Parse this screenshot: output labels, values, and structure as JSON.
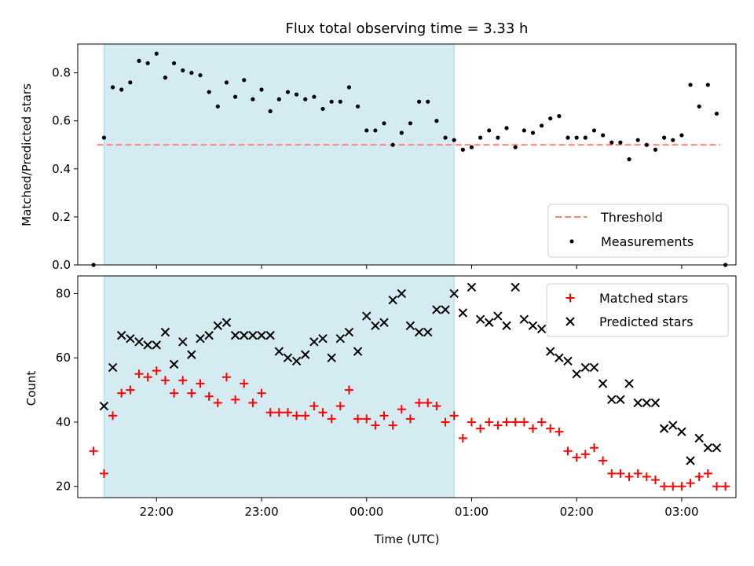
{
  "chart_data": {
    "title": "Flux total observing time = 3.33 h",
    "xlabel": "Time (UTC)",
    "x_tick_labels": [
      "22:00",
      "23:00",
      "00:00",
      "01:00",
      "02:00",
      "03:00"
    ],
    "observing_window": {
      "start": "21:30",
      "end": "00:50",
      "color": "#d4ebf2"
    },
    "panels": [
      {
        "id": "ratio",
        "type": "scatter",
        "ylabel": "Matched/Predicted stars",
        "ylim": [
          0.0,
          0.92
        ],
        "y_ticks": [
          0.0,
          0.2,
          0.4,
          0.6,
          0.8
        ],
        "y_tick_labels": [
          "0.0",
          "0.2",
          "0.4",
          "0.6",
          "0.8"
        ],
        "legend_position": "bottom-right",
        "threshold": {
          "name": "Threshold",
          "value": 0.5,
          "x_start": "21:26",
          "x_end": "03:22",
          "color": "#ff7f7f"
        },
        "series": [
          {
            "name": "Measurements",
            "marker": "dot",
            "color": "#000000",
            "points": [
              [
                "21:24",
                0.0
              ],
              [
                "21:30",
                0.53
              ],
              [
                "21:35",
                0.74
              ],
              [
                "21:40",
                0.73
              ],
              [
                "21:45",
                0.76
              ],
              [
                "21:50",
                0.85
              ],
              [
                "21:55",
                0.84
              ],
              [
                "22:00",
                0.88
              ],
              [
                "22:05",
                0.78
              ],
              [
                "22:10",
                0.84
              ],
              [
                "22:15",
                0.81
              ],
              [
                "22:20",
                0.8
              ],
              [
                "22:25",
                0.79
              ],
              [
                "22:30",
                0.72
              ],
              [
                "22:35",
                0.66
              ],
              [
                "22:40",
                0.76
              ],
              [
                "22:45",
                0.7
              ],
              [
                "22:50",
                0.77
              ],
              [
                "22:55",
                0.69
              ],
              [
                "23:00",
                0.73
              ],
              [
                "23:05",
                0.64
              ],
              [
                "23:10",
                0.69
              ],
              [
                "23:15",
                0.72
              ],
              [
                "23:20",
                0.71
              ],
              [
                "23:25",
                0.69
              ],
              [
                "23:30",
                0.7
              ],
              [
                "23:35",
                0.65
              ],
              [
                "23:40",
                0.68
              ],
              [
                "23:45",
                0.68
              ],
              [
                "23:50",
                0.74
              ],
              [
                "23:55",
                0.66
              ],
              [
                "00:00",
                0.56
              ],
              [
                "00:05",
                0.56
              ],
              [
                "00:10",
                0.59
              ],
              [
                "00:15",
                0.5
              ],
              [
                "00:20",
                0.55
              ],
              [
                "00:25",
                0.59
              ],
              [
                "00:30",
                0.68
              ],
              [
                "00:35",
                0.68
              ],
              [
                "00:40",
                0.6
              ],
              [
                "00:45",
                0.53
              ],
              [
                "00:50",
                0.52
              ],
              [
                "00:55",
                0.48
              ],
              [
                "01:00",
                0.49
              ],
              [
                "01:05",
                0.53
              ],
              [
                "01:10",
                0.56
              ],
              [
                "01:15",
                0.53
              ],
              [
                "01:20",
                0.57
              ],
              [
                "01:25",
                0.49
              ],
              [
                "01:30",
                0.56
              ],
              [
                "01:35",
                0.55
              ],
              [
                "01:40",
                0.58
              ],
              [
                "01:45",
                0.61
              ],
              [
                "01:50",
                0.62
              ],
              [
                "01:55",
                0.53
              ],
              [
                "02:00",
                0.53
              ],
              [
                "02:05",
                0.53
              ],
              [
                "02:10",
                0.56
              ],
              [
                "02:15",
                0.54
              ],
              [
                "02:20",
                0.51
              ],
              [
                "02:25",
                0.51
              ],
              [
                "02:30",
                0.44
              ],
              [
                "02:35",
                0.52
              ],
              [
                "02:40",
                0.5
              ],
              [
                "02:45",
                0.48
              ],
              [
                "02:50",
                0.53
              ],
              [
                "02:55",
                0.52
              ],
              [
                "03:00",
                0.54
              ],
              [
                "03:05",
                0.75
              ],
              [
                "03:10",
                0.66
              ],
              [
                "03:15",
                0.75
              ],
              [
                "03:20",
                0.63
              ],
              [
                "03:25",
                0.0
              ]
            ]
          }
        ]
      },
      {
        "id": "counts",
        "type": "scatter",
        "ylabel": "Count",
        "ylim": [
          16.5,
          85.5
        ],
        "y_ticks": [
          20,
          40,
          60,
          80
        ],
        "y_tick_labels": [
          "20",
          "40",
          "60",
          "80"
        ],
        "legend_position": "top-right",
        "series": [
          {
            "name": "Matched stars",
            "marker": "plus",
            "color": "#ff0000",
            "points": [
              [
                "21:24",
                31
              ],
              [
                "21:30",
                24
              ],
              [
                "21:35",
                42
              ],
              [
                "21:40",
                49
              ],
              [
                "21:45",
                50
              ],
              [
                "21:50",
                55
              ],
              [
                "21:55",
                54
              ],
              [
                "22:00",
                56
              ],
              [
                "22:05",
                53
              ],
              [
                "22:10",
                49
              ],
              [
                "22:15",
                53
              ],
              [
                "22:20",
                49
              ],
              [
                "22:25",
                52
              ],
              [
                "22:30",
                48
              ],
              [
                "22:35",
                46
              ],
              [
                "22:40",
                54
              ],
              [
                "22:45",
                47
              ],
              [
                "22:50",
                52
              ],
              [
                "22:55",
                46
              ],
              [
                "23:00",
                49
              ],
              [
                "23:05",
                43
              ],
              [
                "23:10",
                43
              ],
              [
                "23:15",
                43
              ],
              [
                "23:20",
                42
              ],
              [
                "23:25",
                42
              ],
              [
                "23:30",
                45
              ],
              [
                "23:35",
                43
              ],
              [
                "23:40",
                41
              ],
              [
                "23:45",
                45
              ],
              [
                "23:50",
                50
              ],
              [
                "23:55",
                41
              ],
              [
                "00:00",
                41
              ],
              [
                "00:05",
                39
              ],
              [
                "00:10",
                42
              ],
              [
                "00:15",
                39
              ],
              [
                "00:20",
                44
              ],
              [
                "00:25",
                41
              ],
              [
                "00:30",
                46
              ],
              [
                "00:35",
                46
              ],
              [
                "00:40",
                45
              ],
              [
                "00:45",
                40
              ],
              [
                "00:50",
                42
              ],
              [
                "00:55",
                35
              ],
              [
                "01:00",
                40
              ],
              [
                "01:05",
                38
              ],
              [
                "01:10",
                40
              ],
              [
                "01:15",
                39
              ],
              [
                "01:20",
                40
              ],
              [
                "01:25",
                40
              ],
              [
                "01:30",
                40
              ],
              [
                "01:35",
                38
              ],
              [
                "01:40",
                40
              ],
              [
                "01:45",
                38
              ],
              [
                "01:50",
                37
              ],
              [
                "01:55",
                31
              ],
              [
                "02:00",
                29
              ],
              [
                "02:05",
                30
              ],
              [
                "02:10",
                32
              ],
              [
                "02:15",
                28
              ],
              [
                "02:20",
                24
              ],
              [
                "02:25",
                24
              ],
              [
                "02:30",
                23
              ],
              [
                "02:35",
                24
              ],
              [
                "02:40",
                23
              ],
              [
                "02:45",
                22
              ],
              [
                "02:50",
                20
              ],
              [
                "02:55",
                20
              ],
              [
                "03:00",
                20
              ],
              [
                "03:05",
                21
              ],
              [
                "03:10",
                23
              ],
              [
                "03:15",
                24
              ],
              [
                "03:20",
                20
              ],
              [
                "03:25",
                20
              ]
            ]
          },
          {
            "name": "Predicted stars",
            "marker": "x",
            "color": "#000000",
            "points": [
              [
                "21:30",
                45
              ],
              [
                "21:35",
                57
              ],
              [
                "21:40",
                67
              ],
              [
                "21:45",
                66
              ],
              [
                "21:50",
                65
              ],
              [
                "21:55",
                64
              ],
              [
                "22:00",
                64
              ],
              [
                "22:05",
                68
              ],
              [
                "22:10",
                58
              ],
              [
                "22:15",
                65
              ],
              [
                "22:20",
                61
              ],
              [
                "22:25",
                66
              ],
              [
                "22:30",
                67
              ],
              [
                "22:35",
                70
              ],
              [
                "22:40",
                71
              ],
              [
                "22:45",
                67
              ],
              [
                "22:50",
                67
              ],
              [
                "22:55",
                67
              ],
              [
                "23:00",
                67
              ],
              [
                "23:05",
                67
              ],
              [
                "23:10",
                62
              ],
              [
                "23:15",
                60
              ],
              [
                "23:20",
                59
              ],
              [
                "23:25",
                61
              ],
              [
                "23:30",
                65
              ],
              [
                "23:35",
                66
              ],
              [
                "23:40",
                60
              ],
              [
                "23:45",
                66
              ],
              [
                "23:50",
                68
              ],
              [
                "23:55",
                62
              ],
              [
                "00:00",
                73
              ],
              [
                "00:05",
                70
              ],
              [
                "00:10",
                71
              ],
              [
                "00:15",
                78
              ],
              [
                "00:20",
                80
              ],
              [
                "00:25",
                70
              ],
              [
                "00:30",
                68
              ],
              [
                "00:35",
                68
              ],
              [
                "00:40",
                75
              ],
              [
                "00:45",
                75
              ],
              [
                "00:50",
                80
              ],
              [
                "00:55",
                74
              ],
              [
                "01:00",
                82
              ],
              [
                "01:05",
                72
              ],
              [
                "01:10",
                71
              ],
              [
                "01:15",
                73
              ],
              [
                "01:20",
                70
              ],
              [
                "01:25",
                82
              ],
              [
                "01:30",
                72
              ],
              [
                "01:35",
                70
              ],
              [
                "01:40",
                69
              ],
              [
                "01:45",
                62
              ],
              [
                "01:50",
                60
              ],
              [
                "01:55",
                59
              ],
              [
                "02:00",
                55
              ],
              [
                "02:05",
                57
              ],
              [
                "02:10",
                57
              ],
              [
                "02:15",
                52
              ],
              [
                "02:20",
                47
              ],
              [
                "02:25",
                47
              ],
              [
                "02:30",
                52
              ],
              [
                "02:35",
                46
              ],
              [
                "02:40",
                46
              ],
              [
                "02:45",
                46
              ],
              [
                "02:50",
                38
              ],
              [
                "02:55",
                39
              ],
              [
                "03:00",
                37
              ],
              [
                "03:05",
                28
              ],
              [
                "03:10",
                35
              ],
              [
                "03:15",
                32
              ],
              [
                "03:20",
                32
              ]
            ]
          }
        ]
      }
    ]
  }
}
